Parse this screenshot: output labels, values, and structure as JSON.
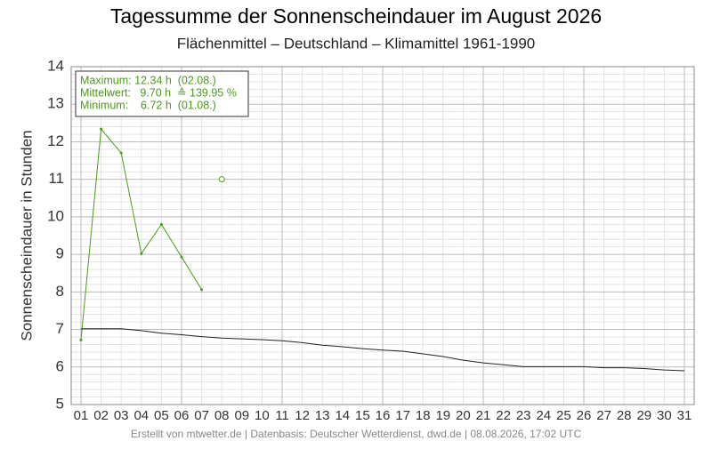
{
  "chart_data": {
    "type": "line",
    "title": "Tagessumme der Sonnenscheindauer im August 2026",
    "subtitle": "Flächenmittel – Deutschland – Klimamittel 1961-1990",
    "y_label": "Sonnenscheindauer in Stunden",
    "annotations": [
      "Maximum: 12.34 h  (02.08.)",
      "Mittelwert:   9.70 h  ≙ 139.95 %",
      "Minimum:    6.72 h  (01.08.)"
    ],
    "footer": "Erstellt von mtwetter.de | Datenbasis: Deutscher Wetterdienst, dwd.de | 08.08.2026, 17:02 UTC",
    "categories": [
      "01",
      "02",
      "03",
      "04",
      "05",
      "06",
      "07",
      "08",
      "09",
      "10",
      "11",
      "12",
      "13",
      "14",
      "15",
      "16",
      "17",
      "18",
      "19",
      "20",
      "21",
      "22",
      "23",
      "24",
      "25",
      "26",
      "27",
      "28",
      "29",
      "30",
      "31"
    ],
    "series": [
      {
        "color": "#4d9a1a",
        "marker": "dot",
        "values": [
          6.72,
          12.34,
          11.7,
          9.02,
          9.8,
          8.93,
          8.06,
          null,
          null,
          null,
          null,
          null,
          null,
          null,
          null,
          null,
          null,
          null,
          null,
          null,
          null,
          null,
          null,
          null,
          null,
          null,
          null,
          null,
          null,
          null,
          null
        ]
      },
      {
        "color": "#4d9a1a",
        "marker": "hollow",
        "values": [
          null,
          null,
          null,
          null,
          null,
          null,
          null,
          11.0,
          null,
          null,
          null,
          null,
          null,
          null,
          null,
          null,
          null,
          null,
          null,
          null,
          null,
          null,
          null,
          null,
          null,
          null,
          null,
          null,
          null,
          null,
          null
        ]
      },
      {
        "color": "#222222",
        "marker": "none",
        "values": [
          7.02,
          7.02,
          7.02,
          6.97,
          6.9,
          6.86,
          6.81,
          6.77,
          6.75,
          6.73,
          6.7,
          6.65,
          6.58,
          6.54,
          6.49,
          6.45,
          6.42,
          6.35,
          6.28,
          6.18,
          6.11,
          6.06,
          6.01,
          6.01,
          6.01,
          6.01,
          5.98,
          5.98,
          5.96,
          5.92,
          5.9
        ]
      }
    ],
    "ylim": [
      5,
      14
    ],
    "yticks": [
      5,
      6,
      7,
      8,
      9,
      10,
      11,
      12,
      13,
      14
    ],
    "grid": true
  }
}
